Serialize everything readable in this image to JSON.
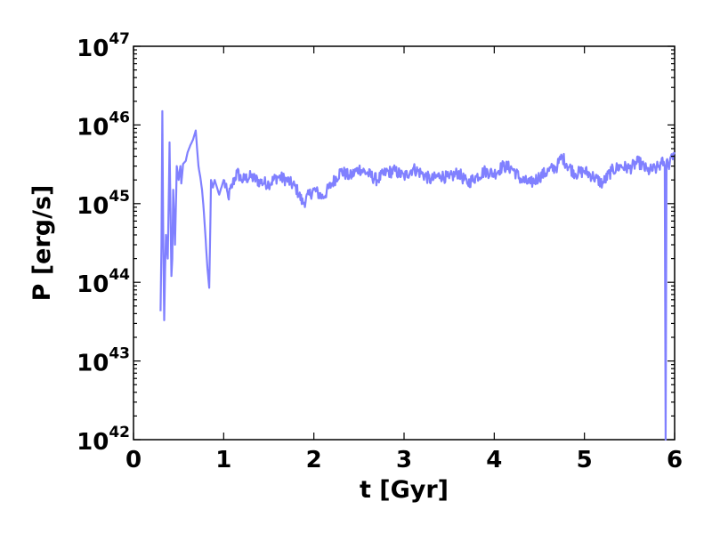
{
  "chart_data": {
    "type": "line",
    "title": "",
    "xlabel": "t [Gyr]",
    "ylabel": "P [erg/s]",
    "xlim": [
      0,
      6
    ],
    "ylim": [
      1e+42,
      1e+47
    ],
    "yscale": "log",
    "grid": false,
    "xticks": [
      {
        "value": 0,
        "label": "0"
      },
      {
        "value": 1,
        "label": "1"
      },
      {
        "value": 2,
        "label": "2"
      },
      {
        "value": 3,
        "label": "3"
      },
      {
        "value": 4,
        "label": "4"
      },
      {
        "value": 5,
        "label": "5"
      },
      {
        "value": 6,
        "label": "6"
      }
    ],
    "yticks": [
      {
        "value": 1e+42,
        "base": "10",
        "exp": "42"
      },
      {
        "value": 1e+43,
        "base": "10",
        "exp": "43"
      },
      {
        "value": 1e+44,
        "base": "10",
        "exp": "44"
      },
      {
        "value": 1e+45,
        "base": "10",
        "exp": "45"
      },
      {
        "value": 1e+46,
        "base": "10",
        "exp": "46"
      },
      {
        "value": 1e+47,
        "base": "10",
        "exp": "47"
      }
    ],
    "series": [
      {
        "color": "#8080ff",
        "x": [
          0.3,
          0.31,
          0.32,
          0.33,
          0.34,
          0.35,
          0.36,
          0.38,
          0.4,
          0.42,
          0.43,
          0.44,
          0.46,
          0.48,
          0.5,
          0.52,
          0.53,
          0.55,
          0.58,
          0.6,
          0.63,
          0.66,
          0.69,
          0.72,
          0.74,
          0.76,
          0.78,
          0.8,
          0.82,
          0.84,
          0.86,
          0.88,
          0.9,
          0.95,
          1.0,
          1.05,
          1.1,
          1.15,
          1.2,
          1.3,
          1.4,
          1.5,
          1.6,
          1.7,
          1.8,
          1.88,
          1.95,
          2.0,
          2.1,
          2.2,
          2.3,
          2.4,
          2.5,
          2.6,
          2.7,
          2.8,
          2.9,
          3.0,
          3.1,
          3.2,
          3.3,
          3.4,
          3.5,
          3.6,
          3.7,
          3.8,
          3.9,
          4.0,
          4.1,
          4.2,
          4.3,
          4.4,
          4.5,
          4.6,
          4.7,
          4.75,
          4.8,
          4.9,
          5.0,
          5.1,
          5.2,
          5.3,
          5.4,
          5.5,
          5.6,
          5.7,
          5.8,
          5.85,
          5.88,
          5.89,
          5.9,
          5.91,
          5.93,
          5.96,
          6.0
        ],
        "y": [
          4.3e+43,
          3e+44,
          1.5e+46,
          4e+44,
          3.3e+43,
          1.5e+44,
          4e+44,
          2e+44,
          6e+45,
          1.2e+44,
          2e+44,
          1.5e+45,
          3e+44,
          3e+45,
          2e+45,
          3e+45,
          1.8e+45,
          3.2e+45,
          3.5e+45,
          4.5e+45,
          5.5e+45,
          6.5e+45,
          8.5e+45,
          3e+45,
          2.2e+45,
          1.5e+45,
          8e+44,
          3.5e+44,
          1.5e+44,
          8.5e+43,
          2e+45,
          1.6e+45,
          2e+45,
          1.3e+45,
          2e+45,
          1.2e+45,
          1.8e+45,
          2.5e+45,
          2e+45,
          2.2e+45,
          1.9e+45,
          1.8e+45,
          2.2e+45,
          2e+45,
          1.6e+45,
          1e+45,
          1.3e+45,
          1.5e+45,
          1.2e+45,
          1.8e+45,
          2.6e+45,
          2.2e+45,
          2.8e+45,
          2.4e+45,
          2e+45,
          2.5e+45,
          2.6e+45,
          2.2e+45,
          2.8e+45,
          2.4e+45,
          2e+45,
          2.3e+45,
          2.1e+45,
          2.5e+45,
          1.8e+45,
          2.2e+45,
          2.6e+45,
          2.4e+45,
          3e+45,
          2.8e+45,
          2e+45,
          1.8e+45,
          2.2e+45,
          2.6e+45,
          3e+45,
          4e+45,
          3.2e+45,
          2.4e+45,
          2.6e+45,
          2.2e+45,
          1.8e+45,
          2.6e+45,
          3e+45,
          2.8e+45,
          3.4e+45,
          2.6e+45,
          2.8e+45,
          3.2e+45,
          3.4e+45,
          3e+45,
          1e+42,
          3.5e+45,
          3e+45,
          4e+45,
          4.5e+45
        ]
      }
    ]
  }
}
